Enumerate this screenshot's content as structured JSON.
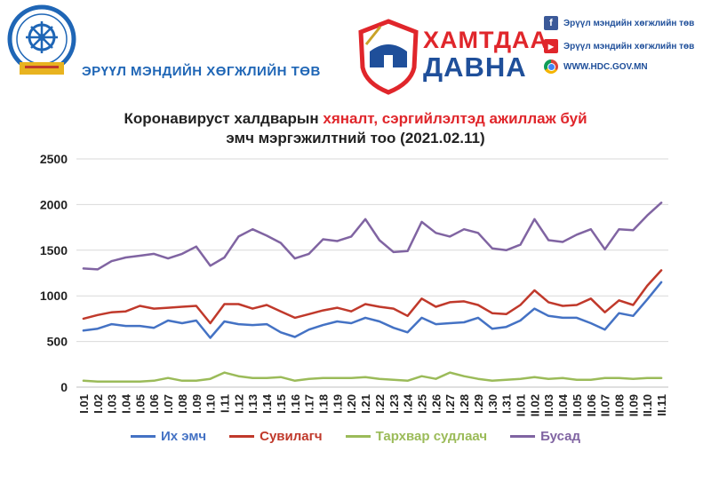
{
  "header": {
    "org_name": "ЭРҮҮЛ МЭНДИЙН ХӨГЖЛИЙН ТӨВ",
    "logo_text": "ЭРҮҮЛ МЭНДИЙН ХӨГЖЛИЙН ТӨВ",
    "campaign_line1": "ХАМТДАА",
    "campaign_line2": "ДАВНА",
    "social": [
      {
        "icon": "facebook-icon",
        "label": "Эрүүл мэндийн хөгжлийн төв",
        "color": "#3b5998"
      },
      {
        "icon": "youtube-icon",
        "label": "Эрүүл мэндийн хөгжлийн төв",
        "color": "#e0262b"
      },
      {
        "icon": "chrome-icon",
        "label": "WWW.HDC.GOV.MN",
        "color": "#4caf50"
      }
    ]
  },
  "chart_data": {
    "type": "line",
    "title_part1": "Коронавируст халдварын ",
    "title_highlight": "хяналт, сэргийлэлтэд ажиллаж буй",
    "title_line2": "эмч мэргэжилтний тоо (2021.02.11)",
    "xlabel": "",
    "ylabel": "",
    "ylim": [
      0,
      2500
    ],
    "yticks": [
      0,
      500,
      1000,
      1500,
      2000,
      2500
    ],
    "grid": true,
    "legend_position": "bottom",
    "categories": [
      "I.01",
      "I.02",
      "I.03",
      "I.04",
      "I.05",
      "I.06",
      "I.07",
      "I.08",
      "I.09",
      "I.10",
      "I.11",
      "I.12",
      "I.13",
      "I.14",
      "I.15",
      "I.16",
      "I.17",
      "I.18",
      "I.19",
      "I.20",
      "I.21",
      "I.22",
      "I.23",
      "I.24",
      "I.25",
      "I.26",
      "I.27",
      "I.28",
      "I.29",
      "I.30",
      "I.31",
      "II.01",
      "II.02",
      "II.03",
      "II.04",
      "II.05",
      "II.06",
      "II.07",
      "II.08",
      "II.09",
      "II.10",
      "II.11"
    ],
    "series": [
      {
        "name": "Их эмч",
        "color": "#4472c4",
        "values": [
          620,
          640,
          690,
          670,
          670,
          650,
          730,
          700,
          730,
          540,
          720,
          690,
          680,
          690,
          600,
          550,
          630,
          680,
          720,
          700,
          760,
          720,
          650,
          600,
          760,
          690,
          700,
          710,
          760,
          640,
          660,
          730,
          860,
          780,
          760,
          760,
          700,
          630,
          810,
          780,
          960,
          1150
        ]
      },
      {
        "name": "Сувилагч",
        "color": "#c0392b",
        "values": [
          750,
          790,
          820,
          830,
          890,
          860,
          870,
          880,
          890,
          700,
          910,
          910,
          860,
          900,
          830,
          760,
          800,
          840,
          870,
          830,
          910,
          880,
          860,
          780,
          970,
          880,
          930,
          940,
          900,
          810,
          800,
          900,
          1060,
          930,
          890,
          900,
          970,
          820,
          950,
          900,
          1110,
          1280
        ]
      },
      {
        "name": "Тархвар судлаач",
        "color": "#9bbb59",
        "values": [
          70,
          60,
          60,
          60,
          60,
          70,
          100,
          70,
          70,
          90,
          160,
          120,
          100,
          100,
          110,
          70,
          90,
          100,
          100,
          100,
          110,
          90,
          80,
          70,
          120,
          90,
          160,
          120,
          90,
          70,
          80,
          90,
          110,
          90,
          100,
          80,
          80,
          100,
          100,
          90,
          100,
          100
        ]
      },
      {
        "name": "Бусад",
        "color": "#8064a2",
        "values": [
          1300,
          1290,
          1380,
          1420,
          1440,
          1460,
          1410,
          1460,
          1540,
          1330,
          1420,
          1650,
          1730,
          1660,
          1580,
          1410,
          1460,
          1620,
          1600,
          1650,
          1840,
          1610,
          1480,
          1490,
          1810,
          1690,
          1650,
          1730,
          1690,
          1520,
          1500,
          1560,
          1840,
          1610,
          1590,
          1670,
          1730,
          1510,
          1730,
          1720,
          1880,
          2020
        ]
      }
    ]
  }
}
